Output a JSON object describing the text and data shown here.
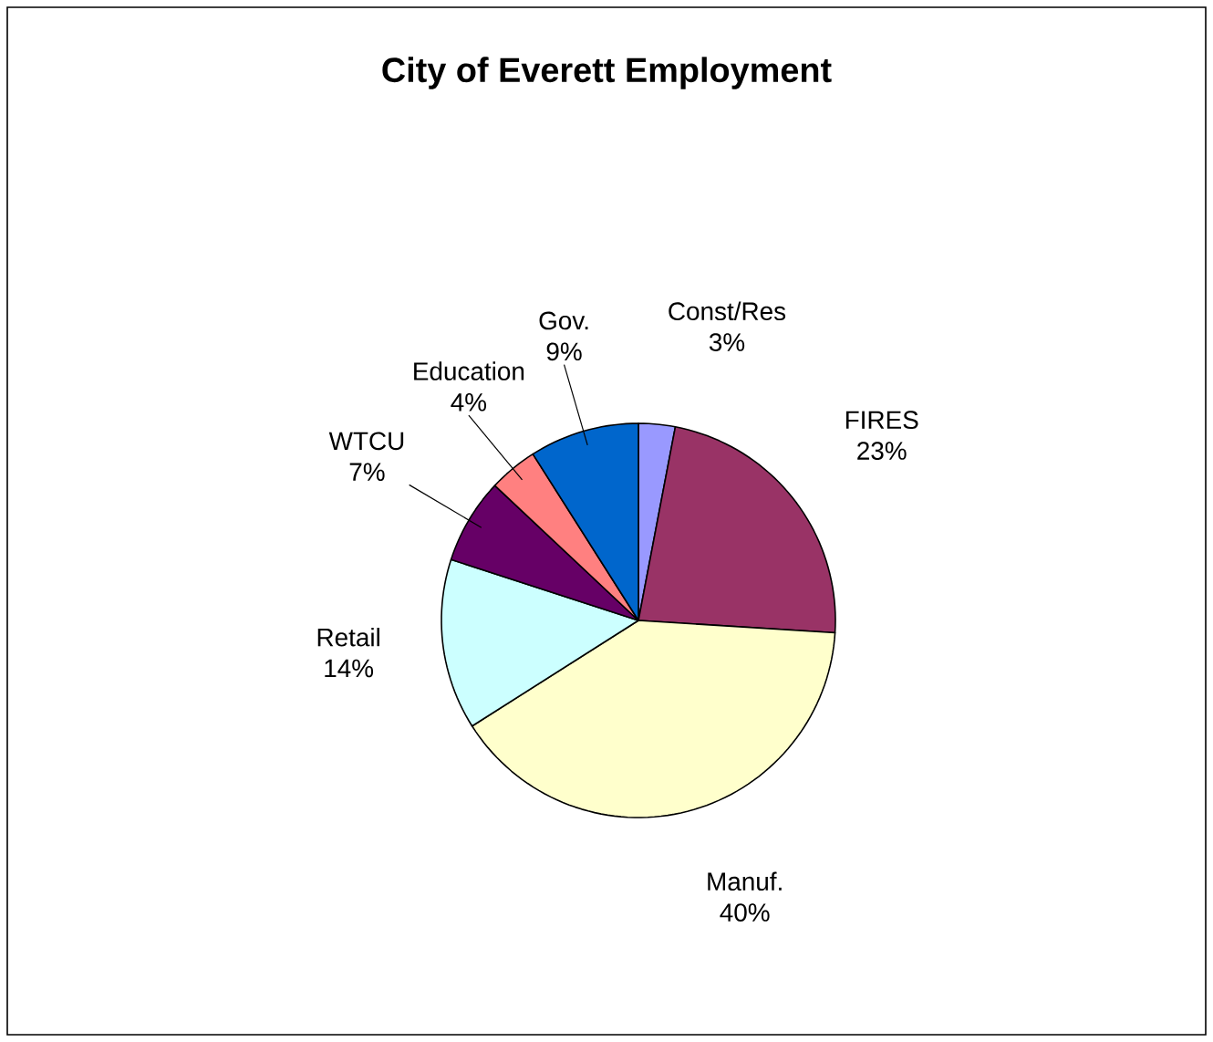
{
  "chart_data": {
    "type": "pie",
    "title": "City of Everett Employment",
    "categories": [
      "Const/Res",
      "FIRES",
      "Manuf.",
      "Retail",
      "WTCU",
      "Education",
      "Gov."
    ],
    "values": [
      3,
      23,
      40,
      14,
      7,
      4,
      9
    ],
    "value_labels": [
      "3%",
      "23%",
      "40%",
      "14%",
      "7%",
      "4%",
      "9%"
    ],
    "colors": [
      "#9999ff",
      "#993366",
      "#ffffcc",
      "#ccffff",
      "#660066",
      "#ff8080",
      "#0066cc"
    ]
  }
}
